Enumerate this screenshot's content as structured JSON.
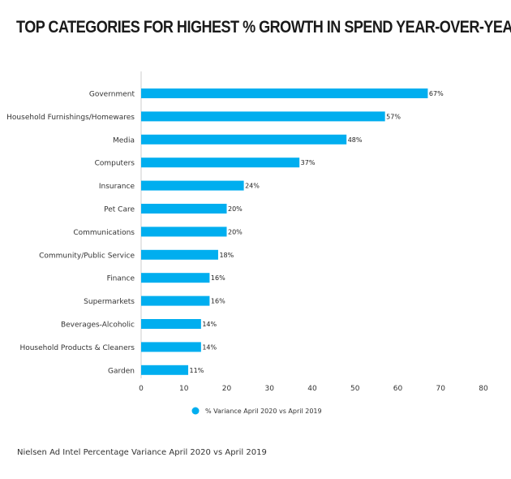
{
  "chart_data": {
    "type": "bar",
    "orientation": "horizontal",
    "title": "TOP CATEGORIES FOR HIGHEST % GROWTH IN SPEND YEAR-OVER-YEAR",
    "categories": [
      "Government",
      "Household Furnishings/Homewares",
      "Media",
      "Computers",
      "Insurance",
      "Pet Care",
      "Communications",
      "Community/Public Service",
      "Finance",
      "Supermarkets",
      "Beverages-Alcoholic",
      "Household Products & Cleaners",
      "Garden"
    ],
    "series": [
      {
        "name": "% Variance April 2020 vs April 2019",
        "values": [
          67,
          57,
          48,
          37,
          24,
          20,
          20,
          18,
          16,
          16,
          14,
          14,
          11
        ],
        "data_labels": [
          "67%",
          "57%",
          "48%",
          "37%",
          "24%",
          "20%",
          "20%",
          "18%",
          "16%",
          "16%",
          "14%",
          "14%",
          "11%"
        ]
      }
    ],
    "xlim": [
      0,
      80
    ],
    "xticks": [
      "0",
      "10",
      "20",
      "30",
      "40",
      "50",
      "60",
      "70",
      "80"
    ],
    "grid": false,
    "legend": "bottom",
    "bar_color": "#00aeef"
  },
  "source_note": "Nielsen Ad Intel Percentage Variance April 2020 vs April 2019"
}
